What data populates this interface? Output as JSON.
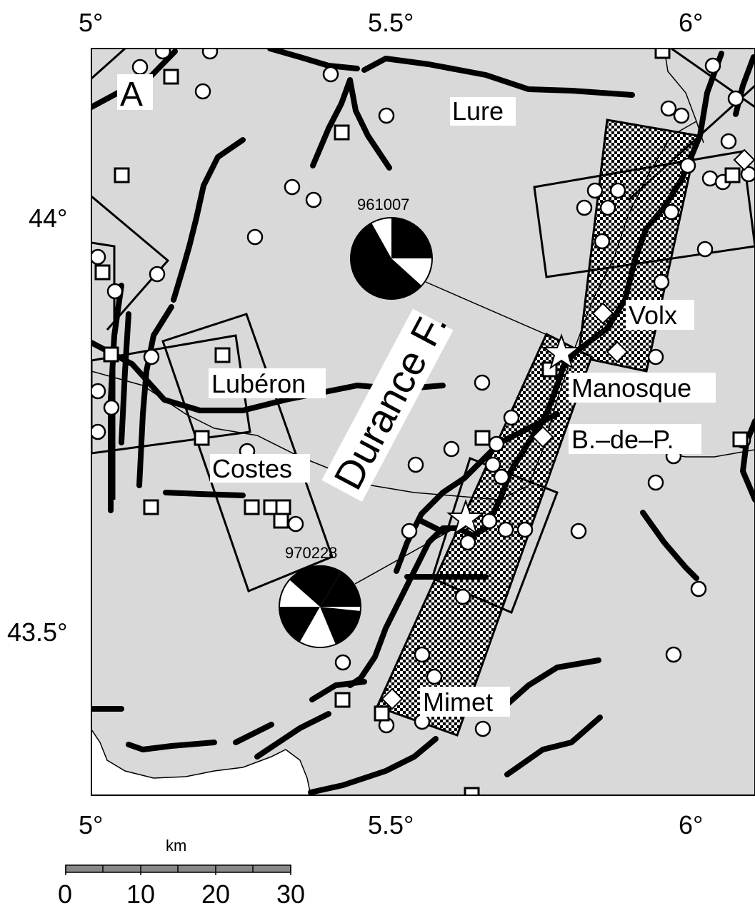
{
  "panel_label": "A",
  "lon_ticks": [
    "5°",
    "5.5°",
    "6°"
  ],
  "lat_ticks": [
    "44°",
    "43.5°"
  ],
  "places": {
    "lure": "Lure",
    "luberon": "Lubéron",
    "costes": "Costes",
    "volx": "Volx",
    "manosque": "Manosque",
    "bdep": "B.–de–P.",
    "mimet": "Mimet",
    "durance": "Durance F."
  },
  "events": {
    "e1": "961007",
    "e2": "970228"
  },
  "scale": {
    "unit": "km",
    "ticks": [
      "0",
      "10",
      "20",
      "30"
    ]
  },
  "colors": {
    "land": "#d9d9d9",
    "fault": "#000000"
  }
}
